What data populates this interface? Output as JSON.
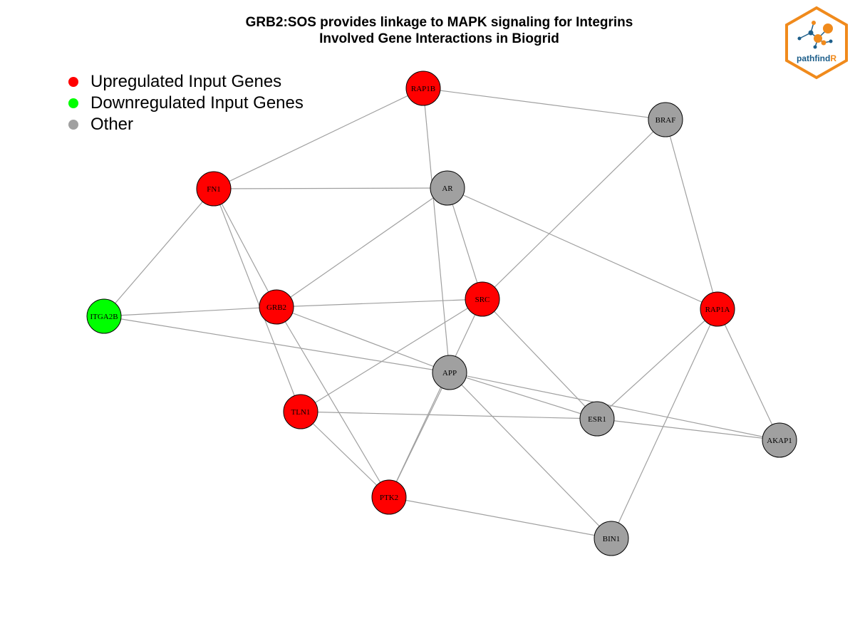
{
  "title": {
    "line1": "GRB2:SOS provides linkage to MAPK signaling for Integrins",
    "line2": "Involved Gene Interactions in Biogrid"
  },
  "legend": [
    {
      "label": "Upregulated Input Genes",
      "color": "#ff0000"
    },
    {
      "label": "Downregulated Input Genes",
      "color": "#00ff00"
    },
    {
      "label": "Other",
      "color": "#a0a0a0"
    }
  ],
  "logo": {
    "text_main": "pathfind",
    "text_accent": "R"
  },
  "colors": {
    "up": "#ff0000",
    "down": "#00ff00",
    "other": "#a0a0a0",
    "edge": "#a0a0a0",
    "logo_border": "#f08a1c",
    "logo_blue": "#1d5e8a"
  },
  "nodes": [
    {
      "id": "RAP1B",
      "status": "up"
    },
    {
      "id": "BRAF",
      "status": "other"
    },
    {
      "id": "FN1",
      "status": "up"
    },
    {
      "id": "AR",
      "status": "other"
    },
    {
      "id": "SRC",
      "status": "up"
    },
    {
      "id": "RAP1A",
      "status": "up"
    },
    {
      "id": "ITGA2B",
      "status": "down"
    },
    {
      "id": "GRB2",
      "status": "up"
    },
    {
      "id": "APP",
      "status": "other"
    },
    {
      "id": "TLN1",
      "status": "up"
    },
    {
      "id": "ESR1",
      "status": "other"
    },
    {
      "id": "AKAP1",
      "status": "other"
    },
    {
      "id": "PTK2",
      "status": "up"
    },
    {
      "id": "BIN1",
      "status": "other"
    }
  ],
  "edges": [
    [
      "RAP1B",
      "BRAF"
    ],
    [
      "RAP1B",
      "FN1"
    ],
    [
      "RAP1B",
      "APP"
    ],
    [
      "BRAF",
      "SRC"
    ],
    [
      "BRAF",
      "RAP1A"
    ],
    [
      "FN1",
      "AR"
    ],
    [
      "FN1",
      "ITGA2B"
    ],
    [
      "FN1",
      "GRB2"
    ],
    [
      "FN1",
      "TLN1"
    ],
    [
      "AR",
      "GRB2"
    ],
    [
      "AR",
      "SRC"
    ],
    [
      "AR",
      "RAP1A"
    ],
    [
      "SRC",
      "GRB2"
    ],
    [
      "SRC",
      "TLN1"
    ],
    [
      "SRC",
      "ESR1"
    ],
    [
      "SRC",
      "PTK2"
    ],
    [
      "RAP1A",
      "ESR1"
    ],
    [
      "RAP1A",
      "AKAP1"
    ],
    [
      "RAP1A",
      "BIN1"
    ],
    [
      "ITGA2B",
      "GRB2"
    ],
    [
      "ITGA2B",
      "APP"
    ],
    [
      "GRB2",
      "APP"
    ],
    [
      "GRB2",
      "PTK2"
    ],
    [
      "APP",
      "ESR1"
    ],
    [
      "APP",
      "AKAP1"
    ],
    [
      "APP",
      "PTK2"
    ],
    [
      "APP",
      "BIN1"
    ],
    [
      "TLN1",
      "ESR1"
    ],
    [
      "TLN1",
      "PTK2"
    ],
    [
      "ESR1",
      "AKAP1"
    ],
    [
      "PTK2",
      "BIN1"
    ]
  ]
}
